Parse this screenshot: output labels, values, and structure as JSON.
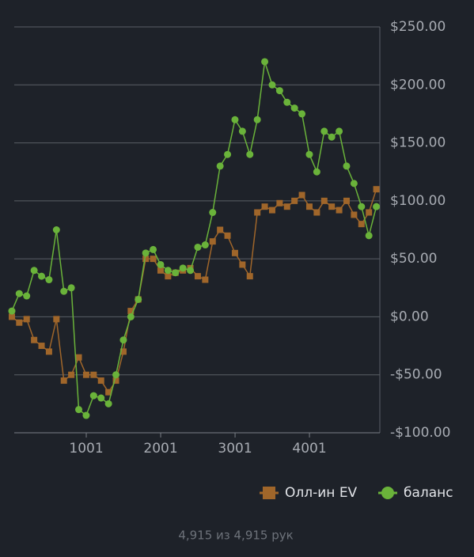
{
  "chart_data": {
    "type": "line",
    "x": [
      1,
      100,
      200,
      300,
      400,
      500,
      600,
      700,
      800,
      900,
      1000,
      1100,
      1200,
      1300,
      1400,
      1500,
      1600,
      1700,
      1800,
      1900,
      2000,
      2100,
      2200,
      2300,
      2400,
      2500,
      2600,
      2700,
      2800,
      2900,
      3000,
      3100,
      3200,
      3300,
      3400,
      3500,
      3600,
      3700,
      3800,
      3900,
      4000,
      4100,
      4200,
      4300,
      4400,
      4500,
      4600,
      4700,
      4800,
      4900
    ],
    "series": [
      {
        "name": "Олл-ин EV",
        "color": "#a0662a",
        "marker": "square",
        "values": [
          0,
          -5,
          -2,
          -20,
          -25,
          -30,
          -2,
          -55,
          -50,
          -35,
          -50,
          -50,
          -55,
          -65,
          -55,
          -30,
          5,
          15,
          50,
          50,
          40,
          35,
          38,
          40,
          42,
          35,
          32,
          65,
          75,
          70,
          55,
          45,
          35,
          90,
          95,
          92,
          98,
          95,
          100,
          105,
          95,
          90,
          100,
          95,
          92,
          100,
          88,
          80,
          90,
          110
        ]
      },
      {
        "name": "баланс",
        "color": "#6ab33a",
        "marker": "circle",
        "values": [
          5,
          20,
          18,
          40,
          35,
          32,
          75,
          22,
          25,
          -80,
          -85,
          -68,
          -70,
          -75,
          -50,
          -20,
          0,
          15,
          55,
          58,
          45,
          40,
          38,
          42,
          40,
          60,
          62,
          90,
          130,
          140,
          170,
          160,
          140,
          170,
          220,
          200,
          195,
          185,
          180,
          175,
          140,
          125,
          160,
          155,
          160,
          130,
          115,
          95,
          70,
          95
        ]
      }
    ],
    "xlim": [
      1,
      4915
    ],
    "xticks": [
      1001,
      2001,
      3001,
      4001
    ],
    "ylim": [
      -100,
      250
    ],
    "yticks": [
      {
        "value": -100,
        "label": "-$100.00"
      },
      {
        "value": -50,
        "label": "-$50.00"
      },
      {
        "value": 0,
        "label": "$0.00"
      },
      {
        "value": 50,
        "label": "$50.00"
      },
      {
        "value": 100,
        "label": "$100.00"
      },
      {
        "value": 150,
        "label": "$150.00"
      },
      {
        "value": 200,
        "label": "$200.00"
      },
      {
        "value": 250,
        "label": "$250.00"
      }
    ],
    "grid": true,
    "footer": "4,915 из 4,915 рук"
  }
}
